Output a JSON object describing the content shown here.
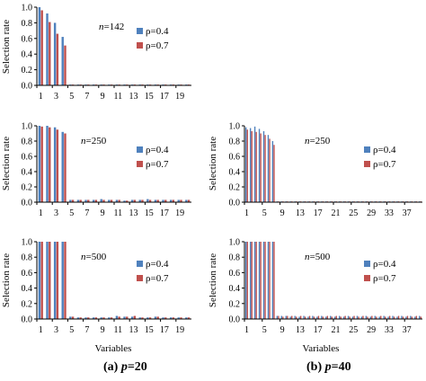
{
  "colors": {
    "rho04": "#4F81BD",
    "rho07": "#C0504D",
    "axis": "#000000",
    "text": "#000000"
  },
  "captions": {
    "a": {
      "prefix": "(a) ",
      "var": "p",
      "suffix": "=20"
    },
    "b": {
      "prefix": "(b) ",
      "var": "p",
      "suffix": "=40"
    }
  },
  "chart_data": [
    {
      "id": "p20-n142",
      "type": "bar",
      "p": 20,
      "annotation": "n=142",
      "annotation_var": "n",
      "annotation_val": "=142",
      "ylabel": "Selection rate",
      "xlabel": "",
      "ylim": [
        0,
        1.0
      ],
      "yticks": [
        "0.0",
        "0.2",
        "0.4",
        "0.6",
        "0.8",
        "1.0"
      ],
      "xtick_labels": [
        "1",
        "3",
        "5",
        "7",
        "9",
        "11",
        "13",
        "15",
        "17",
        "19"
      ],
      "legend": [
        "ρ=0.4",
        "ρ=0.7"
      ],
      "series": [
        {
          "name": "ρ=0.4",
          "values": [
            1.0,
            0.92,
            0.8,
            0.62,
            0.01,
            0.01,
            0.01,
            0.01,
            0.01,
            0.01,
            0.01,
            0.01,
            0.01,
            0.01,
            0.01,
            0.01,
            0.01,
            0.01,
            0.01,
            0.01
          ]
        },
        {
          "name": "ρ=0.7",
          "values": [
            0.96,
            0.81,
            0.66,
            0.51,
            0.01,
            0.01,
            0.01,
            0.01,
            0.01,
            0.01,
            0.01,
            0.01,
            0.01,
            0.01,
            0.01,
            0.01,
            0.01,
            0.01,
            0.01,
            0.01
          ]
        }
      ]
    },
    {
      "id": "p20-n250",
      "type": "bar",
      "p": 20,
      "annotation": "n=250",
      "annotation_var": "n",
      "annotation_val": "=250",
      "ylabel": "Selection rate",
      "xlabel": "",
      "ylim": [
        0,
        1.0
      ],
      "yticks": [
        "0.0",
        "0.2",
        "0.4",
        "0.6",
        "0.8",
        "1.0"
      ],
      "xtick_labels": [
        "1",
        "3",
        "5",
        "7",
        "9",
        "11",
        "13",
        "15",
        "17",
        "19"
      ],
      "legend": [
        "ρ=0.4",
        "ρ=0.7"
      ],
      "series": [
        {
          "name": "ρ=0.4",
          "values": [
            1.0,
            1.0,
            0.98,
            0.92,
            0.03,
            0.03,
            0.03,
            0.03,
            0.04,
            0.03,
            0.03,
            0.02,
            0.03,
            0.03,
            0.04,
            0.03,
            0.03,
            0.03,
            0.03,
            0.03
          ]
        },
        {
          "name": "ρ=0.7",
          "values": [
            0.99,
            0.98,
            0.95,
            0.9,
            0.03,
            0.03,
            0.03,
            0.03,
            0.03,
            0.03,
            0.03,
            0.02,
            0.03,
            0.03,
            0.03,
            0.03,
            0.03,
            0.03,
            0.03,
            0.03
          ]
        }
      ]
    },
    {
      "id": "p20-n500",
      "type": "bar",
      "p": 20,
      "annotation": "n=500",
      "annotation_var": "n",
      "annotation_val": "=500",
      "ylabel": "Selection rate",
      "xlabel": "Variables",
      "ylim": [
        0,
        1.0
      ],
      "yticks": [
        "0.0",
        "0.2",
        "0.4",
        "0.6",
        "0.8",
        "1.0"
      ],
      "xtick_labels": [
        "1",
        "3",
        "5",
        "7",
        "9",
        "11",
        "13",
        "15",
        "17",
        "19"
      ],
      "legend": [
        "ρ=0.4",
        "ρ=0.7"
      ],
      "series": [
        {
          "name": "ρ=0.4",
          "values": [
            1.0,
            1.0,
            1.0,
            1.0,
            0.03,
            0.02,
            0.02,
            0.02,
            0.02,
            0.02,
            0.04,
            0.03,
            0.03,
            0.02,
            0.02,
            0.03,
            0.02,
            0.02,
            0.02,
            0.02
          ]
        },
        {
          "name": "ρ=0.7",
          "values": [
            1.0,
            1.0,
            1.0,
            1.0,
            0.03,
            0.02,
            0.02,
            0.02,
            0.02,
            0.02,
            0.03,
            0.03,
            0.04,
            0.02,
            0.02,
            0.03,
            0.02,
            0.02,
            0.02,
            0.02
          ]
        }
      ]
    },
    {
      "id": "p40-n250",
      "type": "bar",
      "p": 40,
      "annotation": "n=250",
      "annotation_var": "n",
      "annotation_val": "=250",
      "ylabel": "Selection rate",
      "xlabel": "",
      "ylim": [
        0,
        1.0
      ],
      "yticks": [
        "0.0",
        "0.2",
        "0.4",
        "0.6",
        "0.8",
        "1.0"
      ],
      "xtick_labels": [
        "1",
        "5",
        "9",
        "13",
        "17",
        "21",
        "25",
        "29",
        "33",
        "37"
      ],
      "legend": [
        "ρ=0.4",
        "ρ=0.7"
      ],
      "series": [
        {
          "name": "ρ=0.4",
          "values": [
            0.98,
            0.97,
            0.99,
            0.96,
            0.93,
            0.88,
            0.8,
            0.01,
            0.01,
            0.01,
            0.01,
            0.01,
            0.01,
            0.01,
            0.01,
            0.01,
            0.01,
            0.01,
            0.01,
            0.01,
            0.01,
            0.01,
            0.01,
            0.01,
            0.01,
            0.01,
            0.01,
            0.01,
            0.01,
            0.01,
            0.01,
            0.01,
            0.01,
            0.01,
            0.01,
            0.01,
            0.01,
            0.01,
            0.01,
            0.01
          ]
        },
        {
          "name": "ρ=0.7",
          "values": [
            0.95,
            0.93,
            0.92,
            0.9,
            0.88,
            0.83,
            0.75,
            0.01,
            0.01,
            0.01,
            0.01,
            0.01,
            0.01,
            0.01,
            0.01,
            0.01,
            0.01,
            0.01,
            0.01,
            0.01,
            0.01,
            0.01,
            0.01,
            0.01,
            0.01,
            0.01,
            0.01,
            0.01,
            0.01,
            0.01,
            0.01,
            0.01,
            0.01,
            0.01,
            0.01,
            0.01,
            0.01,
            0.01,
            0.01,
            0.01
          ]
        }
      ]
    },
    {
      "id": "p40-n500",
      "type": "bar",
      "p": 40,
      "annotation": "n=500",
      "annotation_var": "n",
      "annotation_val": "=500",
      "ylabel": "Selection rate",
      "xlabel": "Variables",
      "ylim": [
        0,
        1.0
      ],
      "yticks": [
        "0.0",
        "0.2",
        "0.4",
        "0.6",
        "0.8",
        "1.0"
      ],
      "xtick_labels": [
        "1",
        "5",
        "9",
        "13",
        "17",
        "21",
        "25",
        "29",
        "33",
        "37"
      ],
      "legend": [
        "ρ=0.4",
        "ρ=0.7"
      ],
      "series": [
        {
          "name": "ρ=0.4",
          "values": [
            1.0,
            1.0,
            1.0,
            1.0,
            1.0,
            1.0,
            1.0,
            0.04,
            0.04,
            0.04,
            0.03,
            0.04,
            0.03,
            0.04,
            0.03,
            0.04,
            0.03,
            0.04,
            0.03,
            0.04,
            0.03,
            0.04,
            0.03,
            0.04,
            0.03,
            0.04,
            0.03,
            0.04,
            0.03,
            0.04,
            0.03,
            0.04,
            0.03,
            0.04,
            0.03,
            0.04,
            0.03,
            0.04,
            0.03,
            0.04
          ]
        },
        {
          "name": "ρ=0.7",
          "values": [
            1.0,
            1.0,
            1.0,
            1.0,
            1.0,
            1.0,
            1.0,
            0.04,
            0.03,
            0.04,
            0.04,
            0.03,
            0.04,
            0.03,
            0.04,
            0.03,
            0.04,
            0.03,
            0.04,
            0.03,
            0.04,
            0.03,
            0.04,
            0.03,
            0.04,
            0.03,
            0.04,
            0.03,
            0.04,
            0.03,
            0.04,
            0.03,
            0.04,
            0.03,
            0.04,
            0.03,
            0.04,
            0.03,
            0.04,
            0.03
          ]
        }
      ]
    }
  ]
}
